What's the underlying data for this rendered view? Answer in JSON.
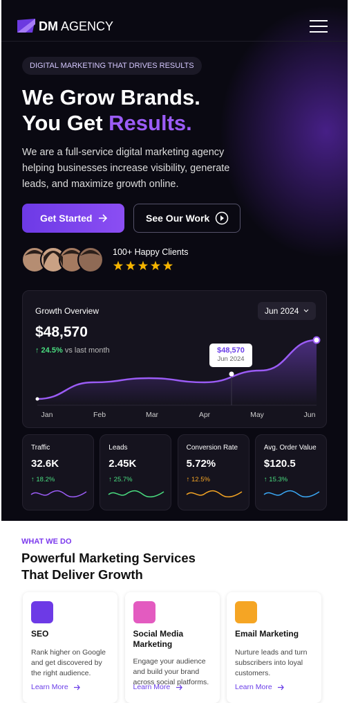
{
  "header": {
    "brand_bold": "DM",
    "brand_light": "AGENCY"
  },
  "hero": {
    "badge": "DIGITAL MARKETING THAT DRIVES RESULTS",
    "title_line1": "We Grow Brands.",
    "title_line2_start": "You Get",
    "title_line2_accent": "Results.",
    "text": "We are a full-service digital marketing agency helping businesses increase visibility, generate leads, and maximize growth online.",
    "primary_button": "Get Started",
    "secondary_button": "See Our Work",
    "clients": "100+ Happy Clients"
  },
  "growth_card": {
    "title": "Growth Overview",
    "period": "Jun 2024",
    "amount": "$48,570",
    "change": "↑ 24.5%",
    "change_note": "vs last month",
    "tooltip_value": "$48,570",
    "tooltip_date": "Jun 2024",
    "chart": {
      "type": "line",
      "x": [
        "Jan",
        "Feb",
        "Mar",
        "Apr",
        "May",
        "Jun"
      ],
      "values": [
        9,
        33,
        39,
        33,
        50,
        94
      ],
      "ylim": [
        0,
        100
      ]
    }
  },
  "stats": [
    {
      "label": "Traffic",
      "value": "32.6K",
      "change": "↑ 18.2%"
    },
    {
      "label": "Leads",
      "value": "2.45K",
      "change": "↑ 25.7%"
    },
    {
      "label": "Conversion Rate",
      "value": "5.72%",
      "change": "↑ 12.5%"
    },
    {
      "label": "Avg. Order Value",
      "value": "$120.5",
      "change": "↑ 15.3%"
    }
  ],
  "services": {
    "eyebrow": "WHAT WE DO",
    "heading_line1": "Powerful Marketing Services",
    "heading_line2": "That Deliver Growth",
    "cards": [
      {
        "title": "SEO",
        "text": "Rank higher on Google and get discovered by the right audience.",
        "link": "Learn More"
      },
      {
        "title": "Social Media Marketing",
        "text": "Engage your audience and build your brand across social platforms.",
        "link": "Learn More"
      },
      {
        "title": "Email Marketing",
        "text": "Nurture leads and turn subscribers into loyal customers.",
        "link": "Learn More"
      }
    ]
  }
}
